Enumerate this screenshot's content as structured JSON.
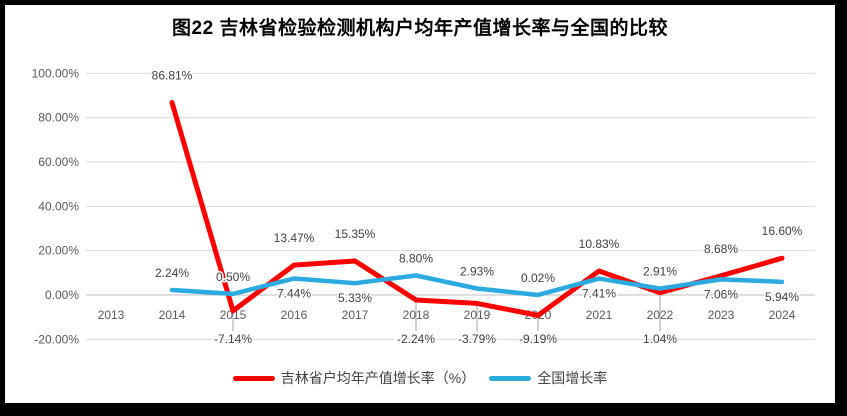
{
  "title": "图22 吉林省检验检测机构户均年产值增长率与全国的比较",
  "legend": [
    {
      "label": "吉林省户均年产值增长率（%）",
      "color": "#FF0000"
    },
    {
      "label": "全国增长率",
      "color": "#29ABE2"
    }
  ],
  "colors": {
    "frame": "#000000",
    "gridline": "#D9D9D9",
    "zero_axis": "#BFBFBF",
    "leader_line": "#A6A6A6",
    "tick_text": "#595959",
    "label_text": "#404040"
  },
  "chart_data": {
    "type": "line",
    "title": "图22 吉林省检验检测机构户均年产值增长率与全国的比较",
    "categories": [
      "2013",
      "2014",
      "2015",
      "2016",
      "2017",
      "2018",
      "2019",
      "2020",
      "2021",
      "2022",
      "2023",
      "2024"
    ],
    "xlabel": "",
    "ylabel": "",
    "ylim": [
      -20,
      100
    ],
    "grid": true,
    "legend_position": "bottom",
    "y_ticks": [
      {
        "value": 100,
        "label": "100.00%"
      },
      {
        "value": 80,
        "label": "80.00%"
      },
      {
        "value": 60,
        "label": "60.00%"
      },
      {
        "value": 40,
        "label": "40.00%"
      },
      {
        "value": 20,
        "label": "20.00%"
      },
      {
        "value": 0,
        "label": "0.00%"
      },
      {
        "value": -20,
        "label": "-20.00%"
      }
    ],
    "series": [
      {
        "name": "吉林省户均年产值增长率（%）",
        "color": "#FF0000",
        "stroke_width": 5,
        "values": [
          null,
          86.81,
          -7.14,
          13.47,
          15.35,
          -2.24,
          -3.79,
          -9.19,
          10.83,
          1.04,
          8.68,
          16.6
        ],
        "labels": [
          null,
          "86.81%",
          "-7.14%",
          "13.47%",
          "15.35%",
          "-2.24%",
          "-3.79%",
          "-9.19%",
          "10.83%",
          "1.04%",
          "8.68%",
          "16.60%"
        ],
        "label_placement": [
          null,
          "above",
          "callout",
          "above",
          "above",
          "callout",
          "callout",
          "callout",
          "above",
          "callout",
          "above",
          "above"
        ],
        "label_offset_above": -27,
        "label_offset_below": 15
      },
      {
        "name": "全国增长率",
        "color": "#29ABE2",
        "stroke_width": 4.5,
        "values": [
          null,
          2.24,
          0.5,
          7.44,
          5.33,
          8.8,
          2.93,
          0.02,
          7.41,
          2.91,
          7.06,
          5.94
        ],
        "labels": [
          null,
          "2.24%",
          "0.50%",
          "7.44%",
          "5.33%",
          "8.80%",
          "2.93%",
          "0.02%",
          "7.41%",
          "2.91%",
          "7.06%",
          "5.94%"
        ],
        "label_placement": [
          null,
          "above",
          "above",
          "below",
          "below",
          "above",
          "above",
          "above",
          "below",
          "above",
          "below",
          "below"
        ],
        "label_offset_above": -17,
        "label_offset_below": 15
      }
    ]
  }
}
